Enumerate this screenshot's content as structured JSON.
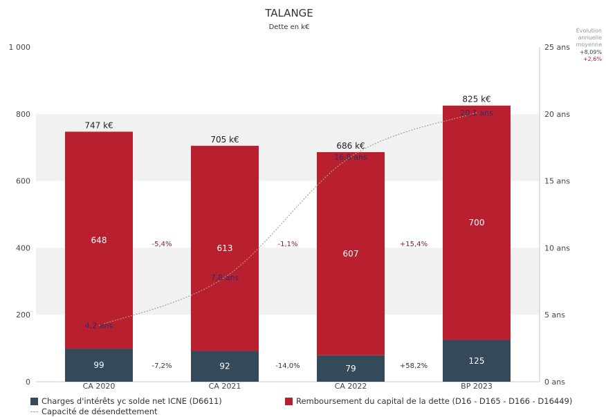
{
  "chart_data": {
    "type": "bar",
    "title": "TALANGE",
    "subtitle": "Dette en k€",
    "categories": [
      "CA 2020",
      "CA 2021",
      "CA 2022",
      "BP 2023"
    ],
    "series": [
      {
        "name": "Charges d'intérêts yc solde net ICNE (D6611)",
        "type": "bar",
        "axis": "left",
        "color": "#34495a",
        "values": [
          99,
          92,
          79,
          125
        ],
        "labels": [
          "99",
          "92",
          "79",
          "125"
        ]
      },
      {
        "name": "Remboursement du capital de la dette (D16 - D165 - D166 - D16449)",
        "type": "bar",
        "axis": "left",
        "color": "#b8202f",
        "values": [
          648,
          613,
          607,
          700
        ],
        "labels": [
          "648",
          "613",
          "607",
          "700"
        ]
      },
      {
        "name": "Capacité de désendettement",
        "type": "line",
        "axis": "right",
        "color": "#a8a27a",
        "values": [
          4.2,
          7.8,
          16.8,
          20.1
        ],
        "labels": [
          "4,2 ans",
          "7,8 ans",
          "16,8 ans",
          "20,1 ans"
        ]
      }
    ],
    "totals": [
      747,
      705,
      686,
      825
    ],
    "total_labels": [
      "747 k€",
      "705 k€",
      "686 k€",
      "825 k€"
    ],
    "changes_capital": [
      "-5,4%",
      "-1,1%",
      "+15,4%"
    ],
    "changes_interest": [
      "-7,2%",
      "-14,0%",
      "+58,2%"
    ],
    "y_left": {
      "min": 0,
      "max": 1000,
      "ticks": [
        0,
        200,
        400,
        600,
        800,
        1000
      ],
      "tick_labels": [
        "0",
        "200",
        "400",
        "600",
        "800",
        "1 000"
      ]
    },
    "y_right": {
      "min": 0,
      "max": 25,
      "ticks": [
        0,
        5,
        10,
        15,
        20,
        25
      ],
      "tick_labels": [
        "0 ans",
        "5 ans",
        "10 ans",
        "15 ans",
        "20 ans",
        "25 ans"
      ]
    },
    "grid": "alternating horizontal bands",
    "annual_evolution": {
      "title": "Évolution annuelle moyenne",
      "interest": "+8,09%",
      "capital": "+2,6%"
    },
    "legend_placement": "bottom",
    "colors": {
      "interest": "#34495a",
      "capital": "#b8202f",
      "line": "#a8a27a",
      "change_text": "#8a1c2b",
      "evol_interest": "#34495a",
      "evol_capital": "#b8202f",
      "ratio_text": "#2b2d6e"
    }
  }
}
